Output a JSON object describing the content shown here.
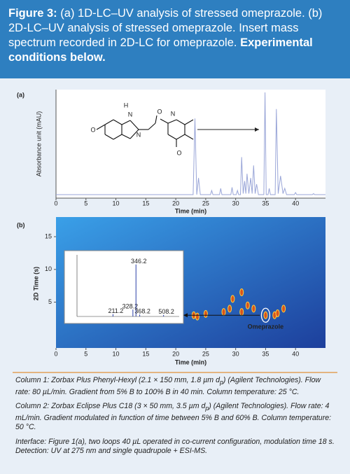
{
  "header": {
    "label": "Figure 3:",
    "text": "(a) 1D-LC–UV analysis of stressed omeprazole. (b) 2D-LC–UV analysis of stressed omeprazole. Insert mass spectrum recorded in 2D-LC for omeprazole.",
    "bold_end": "Experimental conditions below."
  },
  "chart_data": [
    {
      "type": "line",
      "panel_label": "(a)",
      "x_label": "Time (min)",
      "y_label": "Absorbance unit (mAU)",
      "color": "#9aa6d8",
      "structure_atoms": [
        "H",
        "N",
        "N",
        "O",
        "N",
        "O",
        "O"
      ],
      "x": [
        0,
        22.9,
        23.2,
        23.5,
        23.8,
        24.1,
        25.8,
        26,
        26.2,
        27.3,
        27.5,
        27.7,
        29.2,
        29.4,
        29.6,
        30.1,
        30.3,
        30.5,
        30.8,
        31,
        31.25,
        31.5,
        31.7,
        31.9,
        32.2,
        32.5,
        32.75,
        33,
        33.25,
        33.5,
        33.8,
        34.7,
        34.9,
        35.1,
        35.4,
        35.6,
        35.8,
        36.6,
        36.8,
        37.1,
        37.5,
        37.9,
        38.2,
        38.5,
        39.8,
        40,
        40.2,
        42.8,
        43,
        43.2,
        45
      ],
      "values": [
        2,
        2,
        75,
        2,
        18,
        2,
        2,
        6,
        2,
        2,
        8,
        2,
        2,
        9,
        2,
        2,
        6,
        2,
        2,
        38,
        3,
        15,
        3,
        22,
        3,
        18,
        3,
        30,
        3,
        12,
        2,
        2,
        100,
        2,
        2,
        8,
        2,
        2,
        84,
        3,
        20,
        3,
        8,
        2,
        2,
        4,
        2,
        2,
        3,
        2,
        2
      ],
      "xlim": [
        0,
        45
      ],
      "xticks": [
        0,
        5,
        10,
        15,
        20,
        25,
        30,
        35,
        40
      ],
      "ylim": [
        0,
        100
      ]
    },
    {
      "type": "scatter",
      "panel_label": "(b)",
      "x_label": "Time (min)",
      "y_label": "2D Time (s)",
      "annotation": "Omeprazole",
      "color": "#d9531e",
      "x": [
        23,
        23.6,
        25,
        28,
        29,
        29.5,
        31,
        31,
        32,
        33,
        35,
        36.5,
        37,
        38
      ],
      "values": [
        3,
        2.8,
        3.2,
        3.5,
        4,
        5.5,
        3.5,
        6.5,
        4.5,
        4,
        3,
        3,
        3.3,
        4
      ],
      "xlim": [
        0,
        45
      ],
      "xticks": [
        0,
        5,
        10,
        15,
        20,
        25,
        30,
        35,
        40
      ],
      "ylim": [
        -2,
        18
      ],
      "yticks": [
        5,
        10,
        15
      ]
    },
    {
      "type": "bar",
      "x": [
        211.2,
        328.2,
        346.2,
        368.2,
        508.2
      ],
      "values": [
        60000,
        180000,
        1350000,
        50000,
        40000
      ],
      "color": "#2b3fa8",
      "xlim": [
        0,
        600
      ],
      "ylim": [
        0,
        1600000
      ]
    }
  ],
  "notes": [
    [
      "Column 1: Zorbax Plus Phenyl-Hexyl (2.1 × 150 mm, 1.8 µm d",
      "p",
      ") (Agilent Technologies). Flow rate: 80 µL/min. Gradient from 5% B to 100% B in 40 min. Column temperature: 25 °C."
    ],
    [
      "Column 2: Zorbax Eclipse Plus C18 (3 × 50 mm, 3.5 µm d",
      "p",
      ") (Agilent Technologies). Flow rate: 4 mL/min. Gradient modulated in function of time between 5% B and 60% B. Column temperature: 50 °C."
    ],
    [
      "Interface: Figure 1(a), two loops 40 µL operated in co-current configuration, modulation time 18 s. Detection: UV at 275 nm and single quadrupole + ESI-MS."
    ]
  ]
}
